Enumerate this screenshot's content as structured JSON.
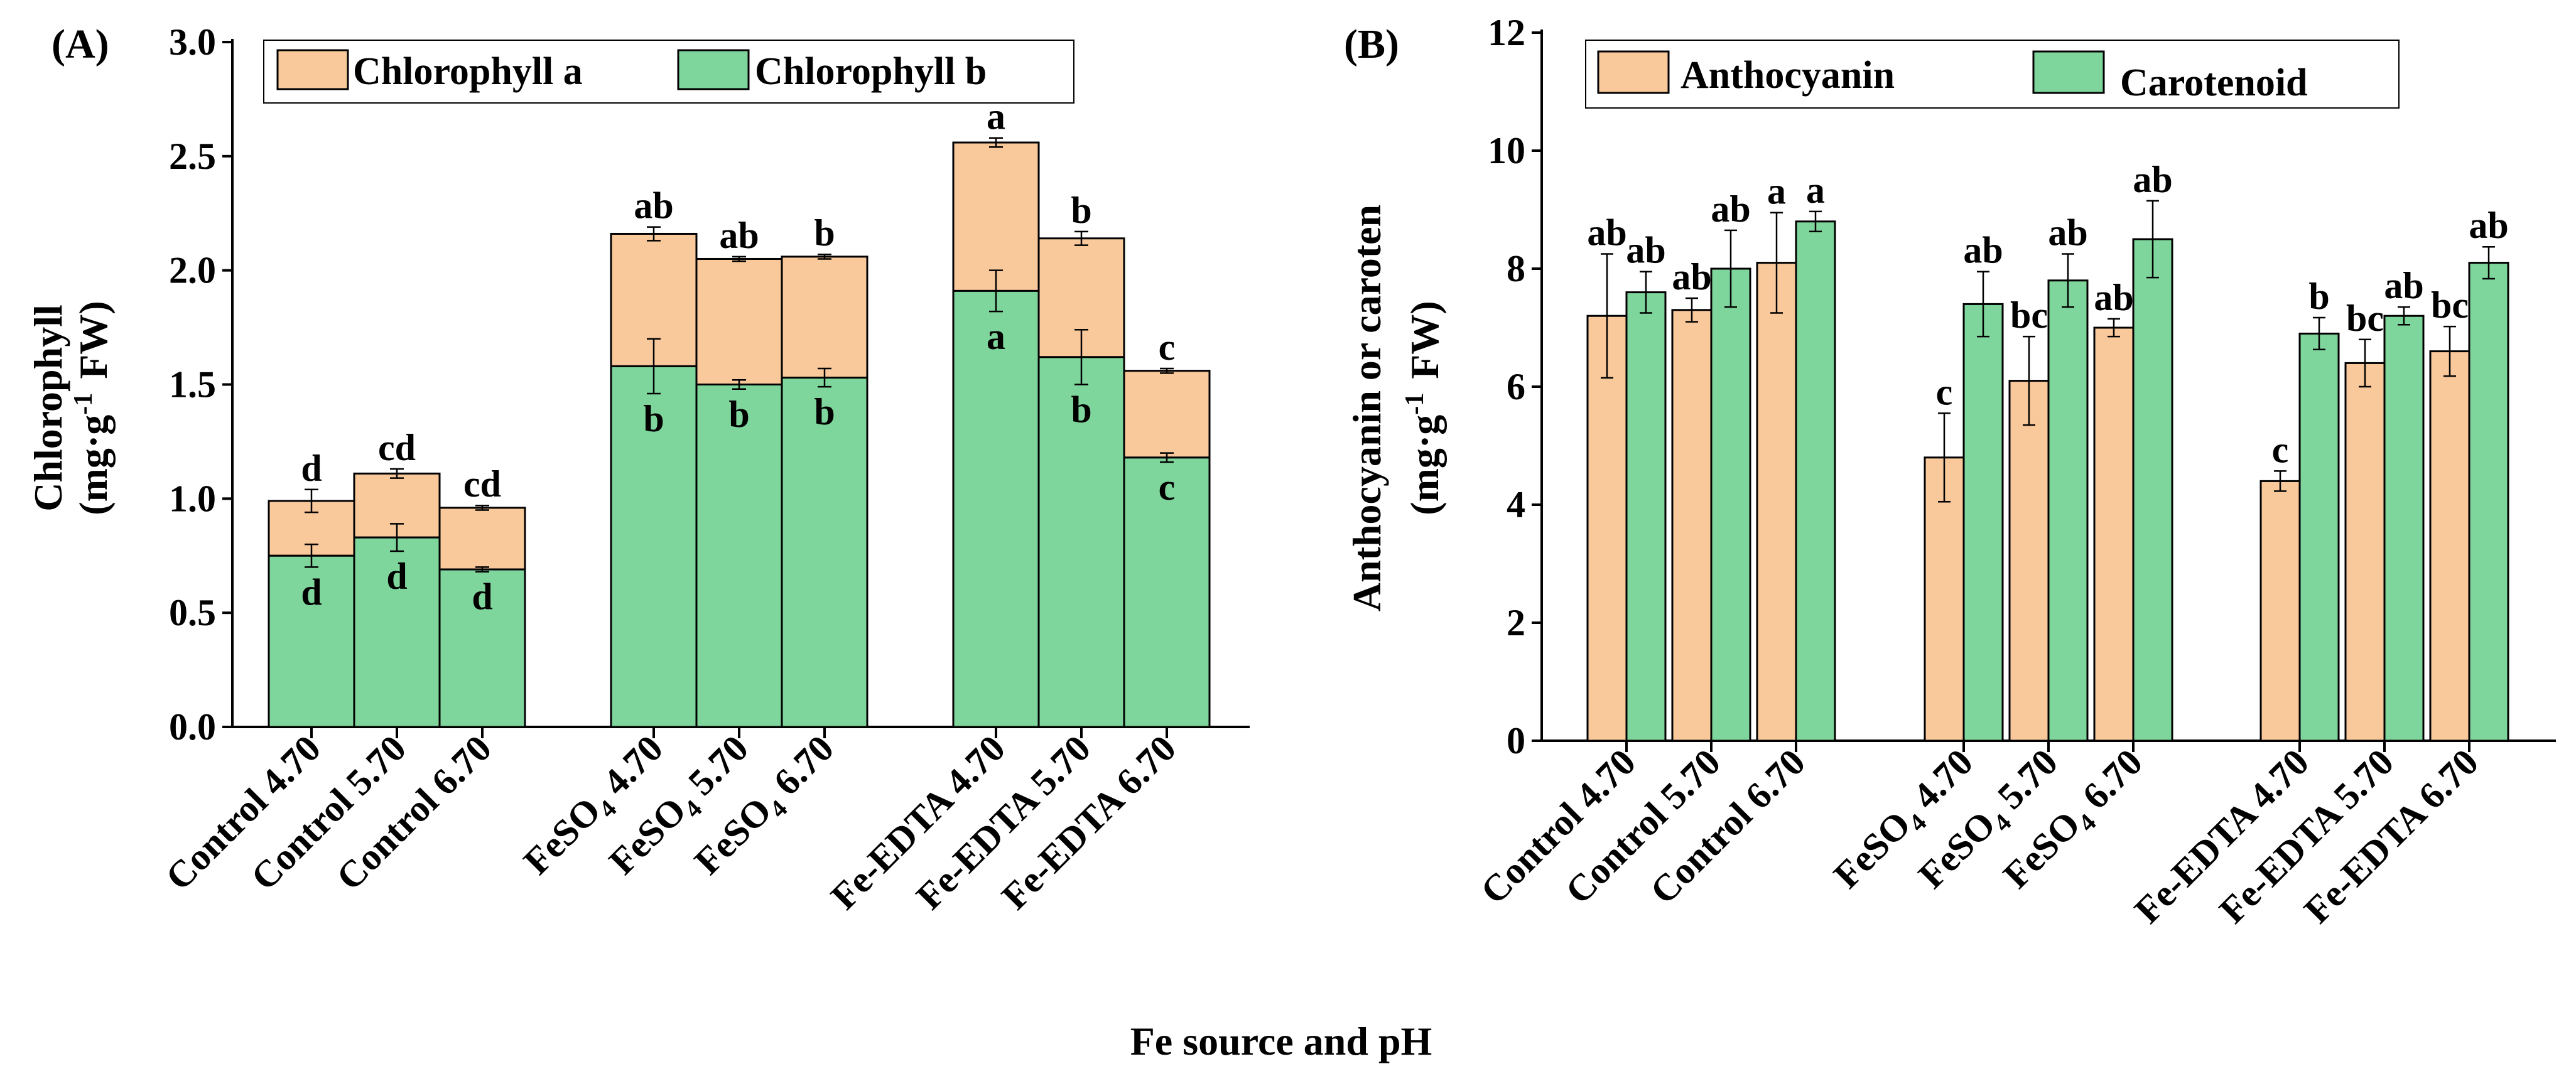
{
  "figure": {
    "shared_xlabel": "Fe source and pH"
  },
  "colors": {
    "chl_a": "#f9c89b",
    "chl_b": "#7fd69c",
    "anthocyanin": "#f9c89b",
    "carotenoid": "#7fd69c",
    "edge": "#000000"
  },
  "chart_data": [
    {
      "panel": "(A)",
      "type": "bar",
      "stacked": true,
      "ylabel_line1": "Chlorophyll",
      "ylabel_unit_pre": "(mg·g",
      "ylabel_unit_sup": "-1",
      "ylabel_unit_post": "FW)",
      "ylim": [
        0,
        3.0
      ],
      "yticks": [
        0.0,
        0.5,
        1.0,
        1.5,
        2.0,
        2.5,
        3.0
      ],
      "ytick_labels": [
        "0.0",
        "0.5",
        "1.0",
        "1.5",
        "2.0",
        "2.5",
        "3.0"
      ],
      "legend": [
        "Chlorophyll a",
        "Chlorophyll b"
      ],
      "legend_position": "top",
      "categories": [
        "Control 4.70",
        "Control 5.70",
        "Control 6.70",
        "FeSO4 4.70",
        "FeSO4 5.70",
        "FeSO4 6.70",
        "Fe-EDTA 4.70",
        "Fe-EDTA 5.70",
        "Fe-EDTA 6.70"
      ],
      "category_parts": [
        {
          "pre": "Control 4.70",
          "sub": "",
          "post": ""
        },
        {
          "pre": "Control 5.70",
          "sub": "",
          "post": ""
        },
        {
          "pre": "Control 6.70",
          "sub": "",
          "post": ""
        },
        {
          "pre": "FeSO",
          "sub": "4",
          "post": " 4.70"
        },
        {
          "pre": "FeSO",
          "sub": "4",
          "post": " 5.70"
        },
        {
          "pre": "FeSO",
          "sub": "4",
          "post": " 6.70"
        },
        {
          "pre": "Fe-EDTA 4.70",
          "sub": "",
          "post": ""
        },
        {
          "pre": "Fe-EDTA 5.70",
          "sub": "",
          "post": ""
        },
        {
          "pre": "Fe-EDTA 6.70",
          "sub": "",
          "post": ""
        }
      ],
      "chl_b": [
        0.75,
        0.83,
        0.69,
        1.58,
        1.5,
        1.53,
        1.91,
        1.62,
        1.18
      ],
      "chl_b_err": [
        0.05,
        0.06,
        0.01,
        0.12,
        0.02,
        0.04,
        0.09,
        0.12,
        0.02
      ],
      "chl_b_letters": [
        "d",
        "d",
        "d",
        "b",
        "b",
        "b",
        "a",
        "b",
        "c"
      ],
      "total": [
        0.99,
        1.11,
        0.96,
        2.16,
        2.05,
        2.06,
        2.56,
        2.14,
        1.56
      ],
      "total_err": [
        0.05,
        0.02,
        0.01,
        0.03,
        0.01,
        0.01,
        0.02,
        0.03,
        0.01
      ],
      "total_letters": [
        "d",
        "cd",
        "cd",
        "ab",
        "ab",
        "b",
        "a",
        "b",
        "c"
      ]
    },
    {
      "panel": "(B)",
      "type": "bar",
      "grouped": true,
      "ylabel_line1": "Anthocyanin or caroten",
      "ylabel_unit_pre": "(mg·g",
      "ylabel_unit_sup": "-1",
      "ylabel_unit_post": "FW)",
      "ylim": [
        0,
        12
      ],
      "yticks": [
        0,
        2,
        4,
        6,
        8,
        10,
        12
      ],
      "ytick_labels": [
        "0",
        "2",
        "4",
        "6",
        "8",
        "10",
        "12"
      ],
      "legend": [
        "Anthocyanin",
        "Carotenoid"
      ],
      "legend_position": "top",
      "categories": [
        "Control 4.70",
        "Control 5.70",
        "Control 6.70",
        "FeSO4 4.70",
        "FeSO4 5.70",
        "FeSO4 6.70",
        "Fe-EDTA 4.70",
        "Fe-EDTA 5.70",
        "Fe-EDTA 6.70"
      ],
      "category_parts": [
        {
          "pre": "Control 4.70",
          "sub": "",
          "post": ""
        },
        {
          "pre": "Control 5.70",
          "sub": "",
          "post": ""
        },
        {
          "pre": "Control 6.70",
          "sub": "",
          "post": ""
        },
        {
          "pre": "FeSO",
          "sub": "4",
          "post": " 4.70"
        },
        {
          "pre": "FeSO",
          "sub": "4",
          "post": " 5.70"
        },
        {
          "pre": "FeSO",
          "sub": "4",
          "post": " 6.70"
        },
        {
          "pre": "Fe-EDTA 4.70",
          "sub": "",
          "post": ""
        },
        {
          "pre": "Fe-EDTA 5.70",
          "sub": "",
          "post": ""
        },
        {
          "pre": "Fe-EDTA 6.70",
          "sub": "",
          "post": ""
        }
      ],
      "series": [
        {
          "name": "Anthocyanin",
          "values": [
            7.2,
            7.3,
            8.1,
            4.8,
            6.1,
            7.0,
            4.4,
            6.4,
            6.6
          ],
          "errors": [
            1.05,
            0.2,
            0.85,
            0.75,
            0.75,
            0.15,
            0.17,
            0.4,
            0.42
          ],
          "letters": [
            "ab",
            "ab",
            "a",
            "c",
            "bc",
            "ab",
            "c",
            "bc",
            "bc"
          ]
        },
        {
          "name": "Carotenoid",
          "values": [
            7.6,
            8.0,
            8.8,
            7.4,
            7.8,
            8.5,
            6.9,
            7.2,
            8.1
          ],
          "errors": [
            0.35,
            0.65,
            0.17,
            0.55,
            0.45,
            0.65,
            0.27,
            0.15,
            0.27
          ],
          "letters": [
            "ab",
            "ab",
            "a",
            "ab",
            "ab",
            "ab",
            "b",
            "ab",
            "ab"
          ]
        }
      ]
    }
  ]
}
